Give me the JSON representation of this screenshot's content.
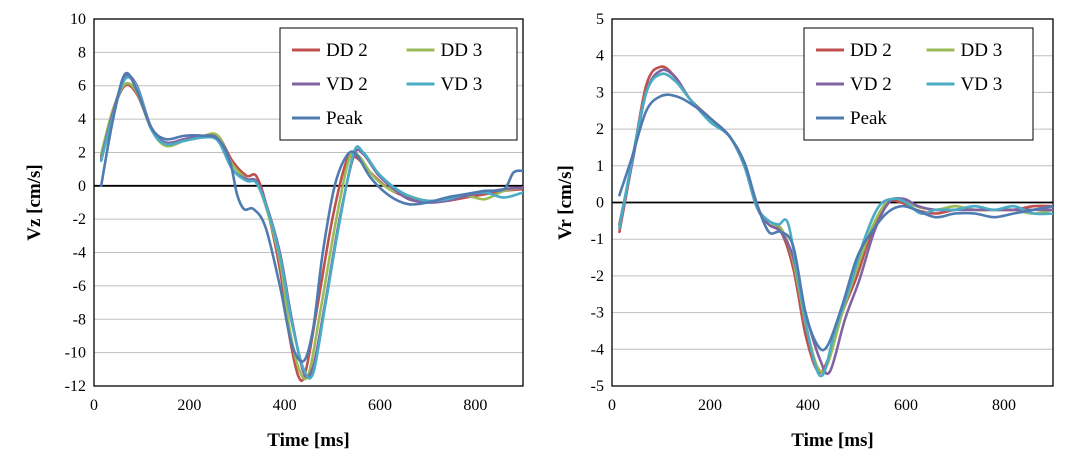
{
  "colors": {
    "DD 2": "#C0504D",
    "DD 3": "#9BBB59",
    "VD 2": "#8064A2",
    "VD 3": "#4BACC6",
    "Peak": "#4F7BB0"
  },
  "chart_data": [
    {
      "type": "line",
      "title": "",
      "xlabel": "Time  [ms]",
      "ylabel": "Vz [cm/s]",
      "xlim": [
        0,
        900
      ],
      "ylim": [
        -12,
        10
      ],
      "xticks": [
        0,
        200,
        400,
        600,
        800
      ],
      "yticks": [
        -12,
        -10,
        -8,
        -6,
        -4,
        -2,
        0,
        2,
        4,
        6,
        8,
        10
      ],
      "legend": [
        "DD 2",
        "DD 3",
        "VD 2",
        "VD 3",
        "Peak"
      ],
      "legend_position": "top-right",
      "series": [
        {
          "name": "DD 2",
          "x": [
            15,
            40,
            65,
            90,
            120,
            150,
            190,
            230,
            260,
            290,
            320,
            340,
            360,
            390,
            410,
            430,
            445,
            470,
            500,
            530,
            550,
            580,
            620,
            660,
            700,
            740,
            780,
            820,
            860,
            900
          ],
          "y": [
            1.8,
            4.5,
            6.0,
            5.5,
            3.5,
            2.5,
            2.8,
            3.0,
            3.0,
            1.5,
            0.6,
            0.6,
            -1.0,
            -5.0,
            -9.0,
            -11.5,
            -11.0,
            -7.0,
            -2.0,
            1.5,
            1.7,
            0.8,
            -0.2,
            -0.7,
            -0.9,
            -0.9,
            -0.7,
            -0.5,
            -0.3,
            -0.2
          ]
        },
        {
          "name": "DD 3",
          "x": [
            15,
            40,
            65,
            90,
            120,
            150,
            190,
            230,
            260,
            290,
            320,
            340,
            360,
            390,
            410,
            430,
            450,
            475,
            505,
            535,
            555,
            585,
            620,
            660,
            700,
            740,
            780,
            820,
            860,
            900
          ],
          "y": [
            1.9,
            4.6,
            6.1,
            5.6,
            3.4,
            2.4,
            2.7,
            3.0,
            3.0,
            1.3,
            0.4,
            0.2,
            -1.2,
            -4.5,
            -8.5,
            -11.0,
            -11.3,
            -7.5,
            -2.5,
            1.6,
            1.8,
            0.6,
            -0.2,
            -0.6,
            -0.9,
            -0.8,
            -0.6,
            -0.8,
            -0.3,
            -0.1
          ]
        },
        {
          "name": "VD 2",
          "x": [
            15,
            40,
            65,
            90,
            120,
            150,
            190,
            230,
            260,
            290,
            320,
            340,
            360,
            390,
            415,
            440,
            460,
            485,
            515,
            545,
            565,
            595,
            625,
            660,
            700,
            740,
            780,
            820,
            860,
            900
          ],
          "y": [
            1.6,
            4.4,
            6.5,
            6.0,
            3.5,
            2.6,
            2.8,
            3.0,
            2.8,
            1.0,
            0.4,
            0.3,
            -1.0,
            -4.0,
            -8.0,
            -11.2,
            -10.8,
            -7.0,
            -2.0,
            1.8,
            1.9,
            0.7,
            -0.1,
            -0.8,
            -1.0,
            -0.9,
            -0.6,
            -0.4,
            -0.2,
            -0.1
          ]
        },
        {
          "name": "VD 3",
          "x": [
            15,
            40,
            65,
            90,
            120,
            150,
            190,
            230,
            260,
            290,
            320,
            340,
            360,
            390,
            415,
            440,
            460,
            485,
            515,
            545,
            565,
            595,
            625,
            660,
            700,
            740,
            780,
            820,
            860,
            900
          ],
          "y": [
            1.5,
            4.2,
            6.4,
            5.9,
            3.4,
            2.5,
            2.7,
            2.9,
            2.7,
            1.0,
            0.3,
            0.2,
            -1.1,
            -4.2,
            -8.2,
            -11.0,
            -11.2,
            -7.2,
            -2.2,
            2.0,
            2.0,
            0.8,
            0.0,
            -0.6,
            -0.9,
            -0.8,
            -0.5,
            -0.4,
            -0.7,
            -0.4
          ]
        },
        {
          "name": "Peak",
          "x": [
            15,
            40,
            65,
            90,
            120,
            150,
            190,
            230,
            260,
            285,
            300,
            315,
            335,
            360,
            390,
            415,
            440,
            460,
            480,
            505,
            530,
            550,
            580,
            620,
            660,
            700,
            740,
            780,
            820,
            860,
            880,
            900
          ],
          "y": [
            0.0,
            4.0,
            6.7,
            5.7,
            3.5,
            2.8,
            3.0,
            3.0,
            2.8,
            1.5,
            -0.5,
            -1.4,
            -1.4,
            -2.5,
            -6.0,
            -9.5,
            -10.5,
            -8.5,
            -4.0,
            0.0,
            1.8,
            1.9,
            0.5,
            -0.6,
            -1.1,
            -1.0,
            -0.7,
            -0.5,
            -0.3,
            -0.2,
            0.8,
            0.9
          ]
        }
      ]
    },
    {
      "type": "line",
      "title": "",
      "xlabel": "Time  [ms]",
      "ylabel": "Vr [cm/s]",
      "xlim": [
        0,
        900
      ],
      "ylim": [
        -5,
        5
      ],
      "xticks": [
        0,
        200,
        400,
        600,
        800
      ],
      "yticks": [
        -5,
        -4,
        -3,
        -2,
        -1,
        0,
        1,
        2,
        3,
        4,
        5
      ],
      "legend": [
        "DD 2",
        "DD 3",
        "VD 2",
        "VD 3",
        "Peak"
      ],
      "legend_position": "top-right",
      "series": [
        {
          "name": "DD 2",
          "x": [
            15,
            40,
            70,
            100,
            130,
            160,
            200,
            240,
            270,
            295,
            320,
            345,
            370,
            395,
            420,
            440,
            470,
            500,
            530,
            560,
            590,
            620,
            660,
            700,
            740,
            780,
            820,
            860,
            900
          ],
          "y": [
            -0.8,
            1.0,
            3.2,
            3.7,
            3.4,
            2.8,
            2.3,
            1.8,
            1.0,
            -0.1,
            -0.6,
            -0.8,
            -1.8,
            -3.6,
            -4.6,
            -4.3,
            -3.0,
            -2.0,
            -0.8,
            0.0,
            0.0,
            -0.2,
            -0.3,
            -0.2,
            -0.2,
            -0.2,
            -0.2,
            -0.1,
            -0.1
          ]
        },
        {
          "name": "DD 3",
          "x": [
            15,
            40,
            70,
            100,
            130,
            160,
            200,
            240,
            270,
            295,
            320,
            345,
            370,
            395,
            420,
            440,
            470,
            500,
            530,
            560,
            590,
            620,
            660,
            700,
            740,
            780,
            820,
            860,
            900
          ],
          "y": [
            -0.6,
            1.0,
            3.0,
            3.5,
            3.3,
            2.8,
            2.3,
            1.8,
            1.0,
            -0.1,
            -0.6,
            -0.7,
            -1.6,
            -3.3,
            -4.5,
            -4.4,
            -3.0,
            -1.8,
            -0.7,
            0.0,
            0.1,
            -0.1,
            -0.2,
            -0.1,
            -0.2,
            -0.2,
            -0.2,
            -0.3,
            -0.2
          ]
        },
        {
          "name": "VD 2",
          "x": [
            15,
            40,
            70,
            100,
            130,
            160,
            200,
            240,
            270,
            295,
            320,
            345,
            370,
            395,
            425,
            445,
            475,
            505,
            535,
            565,
            595,
            625,
            660,
            700,
            740,
            780,
            820,
            860,
            900
          ],
          "y": [
            -0.6,
            1.0,
            3.0,
            3.6,
            3.4,
            2.8,
            2.3,
            1.8,
            1.0,
            -0.1,
            -0.6,
            -0.8,
            -1.5,
            -3.0,
            -4.3,
            -4.6,
            -3.2,
            -2.1,
            -0.8,
            0.0,
            0.1,
            -0.1,
            -0.2,
            -0.2,
            -0.2,
            -0.2,
            -0.2,
            -0.2,
            -0.2
          ]
        },
        {
          "name": "VD 3",
          "x": [
            15,
            40,
            70,
            100,
            130,
            160,
            200,
            240,
            270,
            295,
            320,
            340,
            360,
            385,
            410,
            430,
            455,
            485,
            515,
            545,
            575,
            600,
            630,
            660,
            700,
            740,
            780,
            820,
            860,
            900
          ],
          "y": [
            -0.7,
            1.1,
            3.0,
            3.5,
            3.3,
            2.8,
            2.2,
            1.8,
            1.0,
            -0.1,
            -0.5,
            -0.6,
            -0.6,
            -2.5,
            -4.2,
            -4.7,
            -3.5,
            -2.3,
            -1.0,
            -0.1,
            0.1,
            0.0,
            -0.3,
            -0.2,
            -0.2,
            -0.1,
            -0.2,
            -0.1,
            -0.3,
            -0.3
          ]
        },
        {
          "name": "Peak",
          "x": [
            15,
            40,
            70,
            100,
            130,
            160,
            200,
            240,
            270,
            295,
            320,
            345,
            370,
            395,
            420,
            440,
            470,
            500,
            530,
            560,
            590,
            620,
            660,
            700,
            740,
            780,
            820,
            860,
            900
          ],
          "y": [
            0.2,
            1.2,
            2.5,
            2.9,
            2.9,
            2.7,
            2.3,
            1.8,
            1.1,
            0.0,
            -0.8,
            -0.8,
            -1.2,
            -3.0,
            -3.9,
            -3.9,
            -2.8,
            -1.5,
            -0.8,
            -0.3,
            -0.1,
            -0.2,
            -0.4,
            -0.3,
            -0.3,
            -0.4,
            -0.3,
            -0.2,
            -0.1
          ]
        }
      ]
    }
  ]
}
